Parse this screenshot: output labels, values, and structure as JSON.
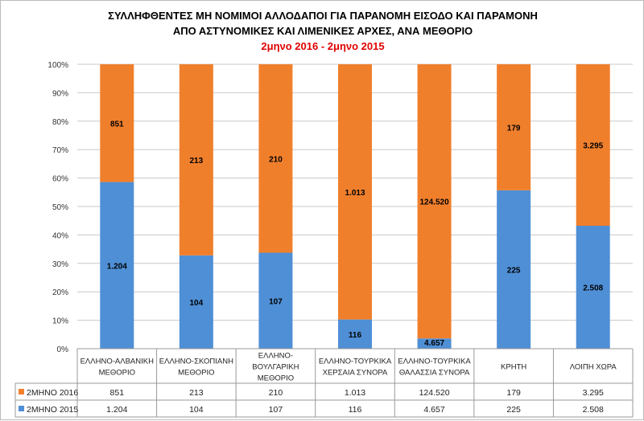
{
  "chart_data": {
    "type": "bar",
    "stacked": "percent",
    "title": "ΣΥΛΛΗΦΘΕΝΤΕΣ ΜΗ ΝΟΜΙΜΟΙ ΑΛΛΟΔΑΠΟΙ ΓΙΑ ΠΑΡΑΝΟΜΗ ΕΙΣΟΔΟ ΚΑΙ ΠΑΡΑΜΟΝΗ",
    "subtitle": "ΑΠΟ ΑΣΤΥΝΟΜΙΚΕΣ ΚΑΙ ΛΙΜΕΝΙΚΕΣ ΑΡΧΕΣ, ΑΝΑ ΜΕΘΟΡΙΟ",
    "period": "2μηνο 2016 - 2μηνο 2015",
    "categories": [
      [
        "ΕΛΛΗΝΟ-ΑΛΒΑΝΙΚΗ",
        "ΜΕΘΟΡΙΟ"
      ],
      [
        "ΕΛΛΗΝΟ-ΣΚΟΠΙΑΝΗ",
        "ΜΕΘΟΡΙΟ"
      ],
      [
        "ΕΛΛΗΝΟ-",
        "ΒΟΥΛΓΑΡΙΚΗ",
        "ΜΕΘΟΡΙΟ"
      ],
      [
        "ΕΛΛΗΝΟ-ΤΟΥΡΚΙΚΑ",
        "ΧΕΡΣΑΙΑ ΣΥΝΟΡΑ"
      ],
      [
        "ΕΛΛΗΝΟ-ΤΟΥΡΚΙΚΑ",
        "ΘΑΛΑΣΣΙΑ ΣΥΝΟΡΑ"
      ],
      [
        "ΚΡΗΤΗ"
      ],
      [
        "ΛΟΙΠΗ ΧΩΡΑ"
      ]
    ],
    "series": [
      {
        "name": "2ΜΗΝΟ 2016",
        "color": "#f07f2c",
        "values": [
          851,
          213,
          210,
          1013,
          124520,
          179,
          3295
        ],
        "labels": [
          "851",
          "213",
          "210",
          "1.013",
          "124.520",
          "179",
          "3.295"
        ]
      },
      {
        "name": "2ΜΗΝΟ 2015",
        "color": "#4f8fd6",
        "values": [
          1204,
          104,
          107,
          116,
          4657,
          225,
          2508
        ],
        "labels": [
          "1.204",
          "104",
          "107",
          "116",
          "4.657",
          "225",
          "2.508"
        ]
      }
    ],
    "y_ticks": [
      "0%",
      "10%",
      "20%",
      "30%",
      "40%",
      "50%",
      "60%",
      "70%",
      "80%",
      "90%",
      "100%"
    ],
    "ylim": [
      0,
      100
    ],
    "grid": true,
    "legend": "data-table"
  }
}
